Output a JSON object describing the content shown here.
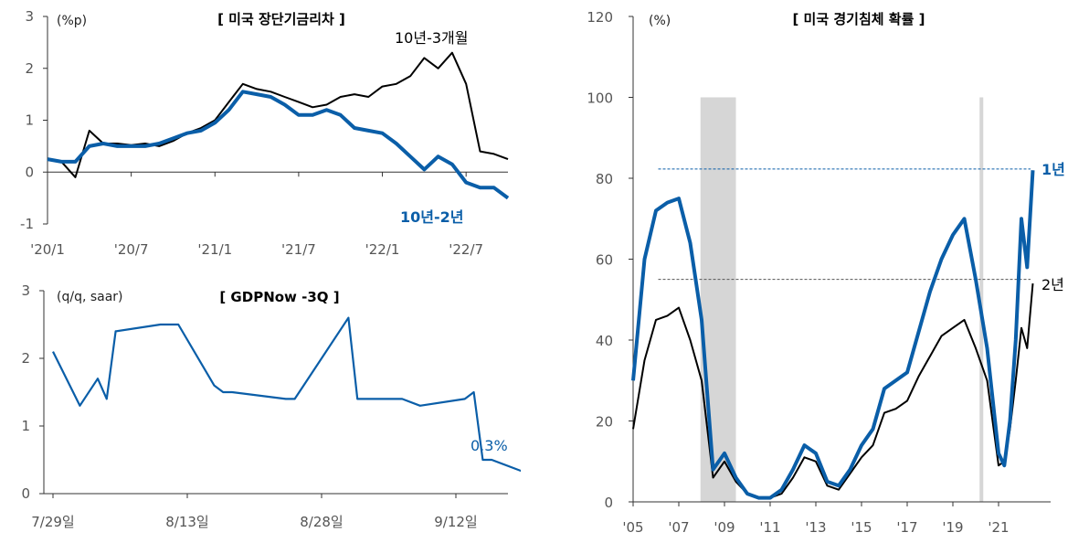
{
  "chart_data": [
    {
      "type": "line",
      "title": "[ 미국 장단기금리차 ]",
      "unit": "(%p)",
      "ylim": [
        -1,
        3
      ],
      "yticks": [
        "3",
        "2",
        "1",
        "0",
        "-1"
      ],
      "xticks": [
        "'20/1",
        "'20/7",
        "'21/1",
        "'21/7",
        "'22/1",
        "'22/7"
      ],
      "grid": false,
      "x": [
        "2020-01",
        "2020-02",
        "2020-03",
        "2020-04",
        "2020-05",
        "2020-06",
        "2020-07",
        "2020-08",
        "2020-09",
        "2020-10",
        "2020-11",
        "2020-12",
        "2021-01",
        "2021-02",
        "2021-03",
        "2021-04",
        "2021-05",
        "2021-06",
        "2021-07",
        "2021-08",
        "2021-09",
        "2021-10",
        "2021-11",
        "2021-12",
        "2022-01",
        "2022-02",
        "2022-03",
        "2022-04",
        "2022-05",
        "2022-06",
        "2022-07",
        "2022-08",
        "2022-09",
        "2022-10"
      ],
      "series": [
        {
          "name": "10년-3개월",
          "color": "#000000",
          "values": [
            0.25,
            0.2,
            -0.1,
            0.8,
            0.55,
            0.55,
            0.52,
            0.55,
            0.5,
            0.6,
            0.75,
            0.85,
            1.0,
            1.35,
            1.7,
            1.6,
            1.55,
            1.45,
            1.35,
            1.25,
            1.3,
            1.45,
            1.5,
            1.45,
            1.65,
            1.7,
            1.85,
            2.2,
            2.0,
            2.3,
            1.7,
            0.4,
            0.35,
            0.25
          ]
        },
        {
          "name": "10년-2년",
          "color": "#0a5ea8",
          "values": [
            0.25,
            0.2,
            0.2,
            0.5,
            0.55,
            0.5,
            0.5,
            0.5,
            0.55,
            0.65,
            0.75,
            0.8,
            0.95,
            1.2,
            1.55,
            1.5,
            1.45,
            1.3,
            1.1,
            1.1,
            1.2,
            1.1,
            0.85,
            0.8,
            0.75,
            0.55,
            0.3,
            0.05,
            0.3,
            0.15,
            -0.2,
            -0.3,
            -0.3,
            -0.5
          ]
        }
      ]
    },
    {
      "type": "line",
      "title": "[ GDPNow -3Q ]",
      "unit": "(q/q, saar)",
      "ylim": [
        0,
        3
      ],
      "yticks": [
        "3",
        "2",
        "1",
        "0"
      ],
      "xticks": [
        "7/29일",
        "8/13일",
        "8/28일",
        "9/12일"
      ],
      "grid": false,
      "annotation": "0.3%",
      "x": [
        "7/29",
        "8/1",
        "8/3",
        "8/4",
        "8/5",
        "8/10",
        "8/12",
        "8/16",
        "8/17",
        "8/18",
        "8/24",
        "8/25",
        "8/26",
        "8/31",
        "9/1",
        "9/6",
        "9/8",
        "9/13",
        "9/14",
        "9/15",
        "9/16",
        "9/20"
      ],
      "series": [
        {
          "name": "",
          "color": "#0a5ea8",
          "values": [
            2.1,
            1.3,
            1.7,
            1.4,
            2.4,
            2.5,
            2.5,
            1.6,
            1.5,
            1.5,
            1.4,
            1.4,
            1.6,
            2.6,
            1.4,
            1.4,
            1.3,
            1.4,
            1.5,
            0.5,
            0.5,
            0.3
          ]
        }
      ]
    },
    {
      "type": "line",
      "title": "[ 미국 경기침체 확률 ]",
      "unit": "(%)",
      "ylim": [
        0,
        120
      ],
      "yticks": [
        "120",
        "100",
        "80",
        "60",
        "40",
        "20",
        "0"
      ],
      "xticks": [
        "'05",
        "'07",
        "'09",
        "'11",
        "'13",
        "'15",
        "'17",
        "'19",
        "'21"
      ],
      "grid": false,
      "recessions": [
        [
          2007.95,
          2009.5
        ],
        [
          2020.17,
          2020.33
        ]
      ],
      "x": [
        2005.0,
        2005.5,
        2006.0,
        2006.5,
        2007.0,
        2007.5,
        2008.0,
        2008.5,
        2009.0,
        2009.5,
        2010.0,
        2010.5,
        2011.0,
        2011.5,
        2012.0,
        2012.5,
        2013.0,
        2013.5,
        2014.0,
        2014.5,
        2015.0,
        2015.5,
        2016.0,
        2016.5,
        2017.0,
        2017.5,
        2018.0,
        2018.5,
        2019.0,
        2019.5,
        2020.0,
        2020.5,
        2021.0,
        2021.25,
        2021.5,
        2021.75,
        2022.0,
        2022.25,
        2022.5
      ],
      "series": [
        {
          "name": "1년",
          "color": "#0a5ea8",
          "ref_line": 82.3,
          "values": [
            30,
            60,
            72,
            74,
            75,
            64,
            45,
            8,
            12,
            6,
            2,
            1,
            1,
            3,
            8,
            14,
            12,
            5,
            4,
            8,
            14,
            18,
            28,
            30,
            32,
            42,
            52,
            60,
            66,
            70,
            55,
            38,
            12,
            9,
            20,
            40,
            70,
            58,
            82
          ]
        },
        {
          "name": "2년",
          "color": "#000000",
          "ref_line": 55.0,
          "values": [
            18,
            35,
            45,
            46,
            48,
            40,
            30,
            6,
            10,
            5,
            2,
            1,
            1,
            2,
            6,
            11,
            10,
            4,
            3,
            7,
            11,
            14,
            22,
            23,
            25,
            31,
            36,
            41,
            43,
            45,
            38,
            30,
            9,
            10,
            18,
            30,
            43,
            38,
            54
          ]
        }
      ]
    }
  ]
}
